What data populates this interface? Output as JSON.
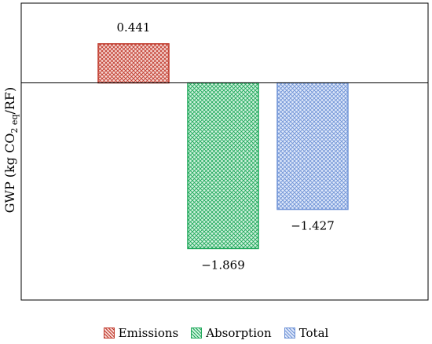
{
  "chart_data": {
    "type": "bar",
    "categories": [
      "Emissions",
      "Absorption",
      "Total"
    ],
    "values": [
      0.441,
      -1.869,
      -1.427
    ],
    "value_labels": [
      "0.441",
      "−1.869",
      "−1.427"
    ],
    "ylabel": "GWP (kg CO",
    "ylabel_sub": "2 eq",
    "ylabel_tail": "/RF)",
    "ylim": [
      -2.45,
      0.9
    ],
    "grid": false,
    "legend_position": "bottom",
    "legend": [
      "Emissions",
      "Absorption",
      "Total"
    ],
    "colors": {
      "Emissions": {
        "stroke": "#c0392b",
        "fill": "#f6d6d2",
        "pattern": "#c0392b"
      },
      "Absorption": {
        "stroke": "#1ea85a",
        "fill": "#d2f2df",
        "pattern": "#1ea85a"
      },
      "Total": {
        "stroke": "#6f93d6",
        "fill": "#dfe8fa",
        "pattern": "#6f93d6"
      }
    }
  }
}
